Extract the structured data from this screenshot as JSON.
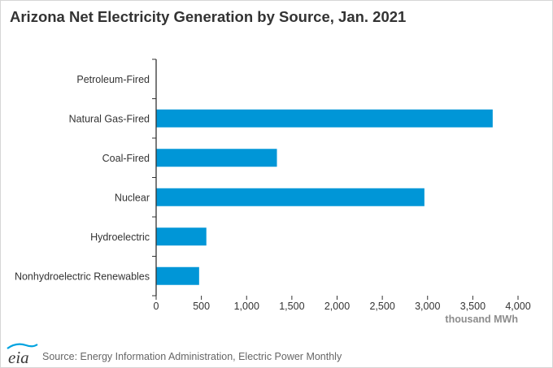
{
  "title": "Arizona Net Electricity Generation by Source, Jan. 2021",
  "source": "Source: Energy Information Administration, Electric Power Monthly",
  "logo_text": "eia",
  "colors": {
    "bar": "#0096d7",
    "axis": "#333333",
    "tick_text": "#333333",
    "unit_text": "#8c8c8c",
    "title": "#333333"
  },
  "chart_data": {
    "type": "bar",
    "orientation": "horizontal",
    "categories": [
      "Petroleum-Fired",
      "Natural Gas-Fired",
      "Coal-Fired",
      "Nuclear",
      "Hydroelectric",
      "Nonhydroelectric Renewables"
    ],
    "values": [
      2,
      3720,
      1335,
      2965,
      555,
      475
    ],
    "xlim": [
      0,
      4000
    ],
    "xticks": [
      0,
      500,
      1000,
      1500,
      2000,
      2500,
      3000,
      3500,
      4000
    ],
    "xtick_labels": [
      "0",
      "500",
      "1,000",
      "1,500",
      "2,000",
      "2,500",
      "3,000",
      "3,500",
      "4,000"
    ],
    "xlabel": "thousand MWh",
    "ylabel": "",
    "grid": false,
    "legend": "none"
  }
}
